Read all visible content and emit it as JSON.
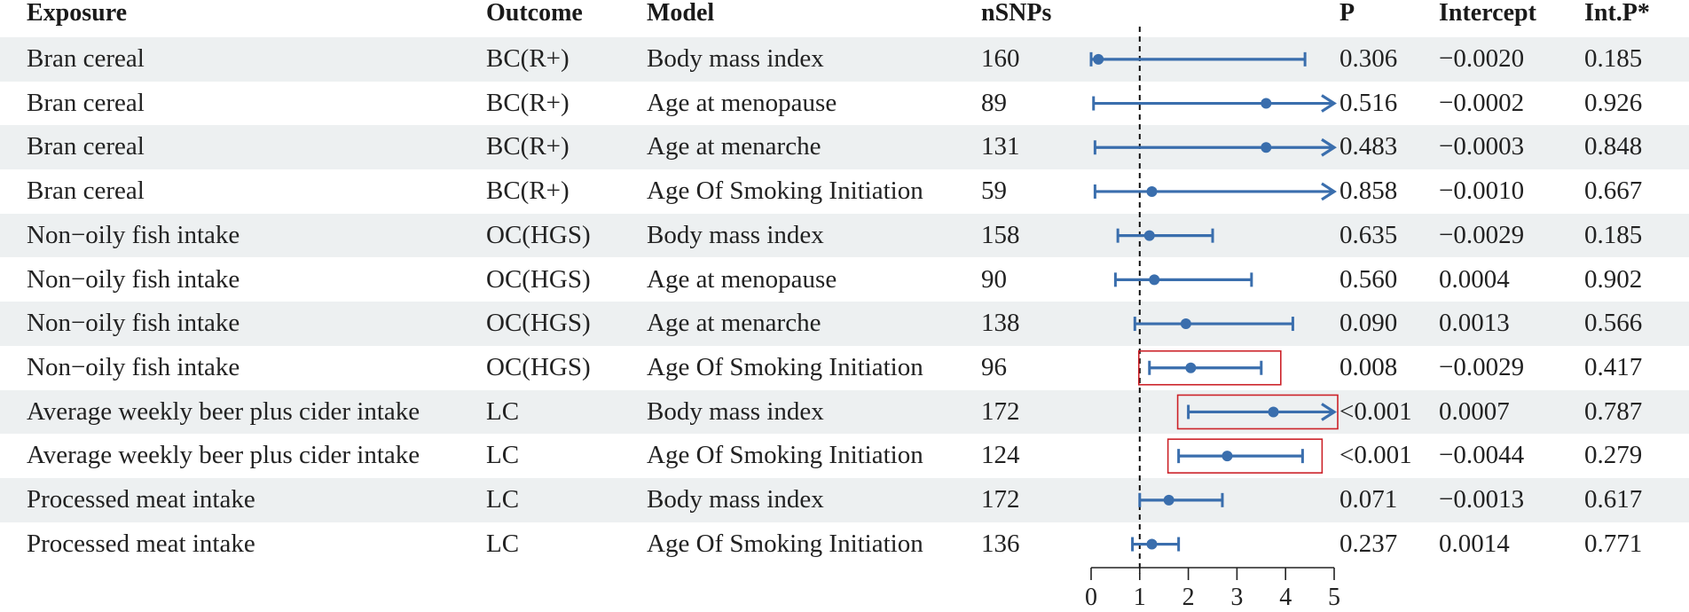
{
  "headers": {
    "exposure": "Exposure",
    "outcome": "Outcome",
    "model": "Model",
    "nsnps": "nSNPs",
    "p": "P",
    "intercept": "Intercept",
    "intp": "Int.P*"
  },
  "rows": [
    {
      "exposure": "Bran cereal",
      "outcome": "BC(R+)",
      "model": "Body mass index",
      "nsnps": "160",
      "p": "0.306",
      "intercept": "−0.0020",
      "intp": "0.185"
    },
    {
      "exposure": "Bran cereal",
      "outcome": "BC(R+)",
      "model": "Age at menopause",
      "nsnps": "89",
      "p": "0.516",
      "intercept": "−0.0002",
      "intp": "0.926"
    },
    {
      "exposure": "Bran cereal",
      "outcome": "BC(R+)",
      "model": "Age at menarche",
      "nsnps": "131",
      "p": "0.483",
      "intercept": "−0.0003",
      "intp": "0.848"
    },
    {
      "exposure": "Bran cereal",
      "outcome": "BC(R+)",
      "model": "Age Of Smoking Initiation",
      "nsnps": "59",
      "p": "0.858",
      "intercept": "−0.0010",
      "intp": "0.667"
    },
    {
      "exposure": "Non−oily fish intake",
      "outcome": "OC(HGS)",
      "model": "Body mass index",
      "nsnps": "158",
      "p": "0.635",
      "intercept": "−0.0029",
      "intp": "0.185"
    },
    {
      "exposure": "Non−oily fish intake",
      "outcome": "OC(HGS)",
      "model": "Age at menopause",
      "nsnps": "90",
      "p": "0.560",
      "intercept": "0.0004",
      "intp": "0.902"
    },
    {
      "exposure": "Non−oily fish intake",
      "outcome": "OC(HGS)",
      "model": "Age at menarche",
      "nsnps": "138",
      "p": "0.090",
      "intercept": "0.0013",
      "intp": "0.566"
    },
    {
      "exposure": "Non−oily fish intake",
      "outcome": "OC(HGS)",
      "model": "Age Of Smoking Initiation",
      "nsnps": "96",
      "p": "0.008",
      "intercept": "−0.0029",
      "intp": "0.417"
    },
    {
      "exposure": "Average weekly beer plus cider intake",
      "outcome": "LC",
      "model": "Body mass index",
      "nsnps": "172",
      "p": "<0.001",
      "intercept": "0.0007",
      "intp": "0.787"
    },
    {
      "exposure": "Average weekly beer plus cider intake",
      "outcome": "LC",
      "model": "Age Of Smoking Initiation",
      "nsnps": "124",
      "p": "<0.001",
      "intercept": "−0.0044",
      "intp": "0.279"
    },
    {
      "exposure": "Processed meat intake",
      "outcome": "LC",
      "model": "Body mass index",
      "nsnps": "172",
      "p": "0.071",
      "intercept": "−0.0013",
      "intp": "0.617"
    },
    {
      "exposure": "Processed meat intake",
      "outcome": "LC",
      "model": "Age Of Smoking Initiation",
      "nsnps": "136",
      "p": "0.237",
      "intercept": "0.0014",
      "intp": "0.771"
    }
  ],
  "chart_data": {
    "type": "forest",
    "xlim": [
      0,
      5
    ],
    "xticks": [
      0,
      1,
      2,
      3,
      4,
      5
    ],
    "reference_line": 1,
    "estimates": [
      {
        "est": 0.15,
        "low": 0.0,
        "high": 4.4,
        "arrow": false,
        "highlight": false
      },
      {
        "est": 3.6,
        "low": 0.05,
        "high": 5,
        "arrow": true,
        "highlight": false
      },
      {
        "est": 3.6,
        "low": 0.08,
        "high": 5,
        "arrow": true,
        "highlight": false
      },
      {
        "est": 1.25,
        "low": 0.08,
        "high": 5,
        "arrow": true,
        "highlight": false
      },
      {
        "est": 1.2,
        "low": 0.55,
        "high": 2.5,
        "arrow": false,
        "highlight": false
      },
      {
        "est": 1.3,
        "low": 0.5,
        "high": 3.3,
        "arrow": false,
        "highlight": false
      },
      {
        "est": 1.95,
        "low": 0.9,
        "high": 4.15,
        "arrow": false,
        "highlight": false
      },
      {
        "est": 2.05,
        "low": 1.2,
        "high": 3.5,
        "arrow": false,
        "highlight": true
      },
      {
        "est": 3.75,
        "low": 2.0,
        "high": 5,
        "arrow": true,
        "highlight": true
      },
      {
        "est": 2.8,
        "low": 1.8,
        "high": 4.35,
        "arrow": false,
        "highlight": true
      },
      {
        "est": 1.6,
        "low": 1.0,
        "high": 2.7,
        "arrow": false,
        "highlight": false
      },
      {
        "est": 1.25,
        "low": 0.85,
        "high": 1.8,
        "arrow": false,
        "highlight": false
      }
    ],
    "colors": {
      "ci": "#3a6ead",
      "highlight_box": "#cc2229",
      "ref_line": "#111111",
      "axis": "#222222"
    }
  }
}
